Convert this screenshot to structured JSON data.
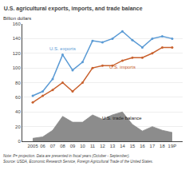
{
  "chart_data": {
    "type": "line",
    "title": "U.S. agricultural exports, imports, and trade balance",
    "ylabel": "Billion dollars",
    "categories": [
      "2005",
      "06",
      "07",
      "08",
      "09",
      "10",
      "11",
      "12",
      "13",
      "14",
      "15",
      "16",
      "17",
      "18",
      "19P"
    ],
    "series": [
      {
        "name": "U.S. trade balance",
        "type": "area",
        "color": "#8c8c8c",
        "values": [
          4,
          6,
          15,
          34,
          26,
          26,
          36,
          30,
          36,
          40,
          23,
          14,
          20,
          15,
          12
        ]
      },
      {
        "name": "U.S. exports",
        "type": "line",
        "color": "#5b9bd5",
        "marker": "circle",
        "values": [
          62,
          68,
          85,
          118,
          97,
          108,
          137,
          135,
          140,
          150,
          138,
          128,
          140,
          143,
          140
        ]
      },
      {
        "name": "U.S. imports",
        "type": "line",
        "color": "#c9622f",
        "marker": "circle",
        "values": [
          53,
          62,
          70,
          80,
          68,
          80,
          100,
          103,
          103,
          110,
          114,
          114,
          120,
          128,
          128
        ]
      }
    ],
    "ylim": [
      0,
      160
    ],
    "yticks": [
      0,
      20,
      40,
      60,
      80,
      100,
      120,
      140,
      160
    ],
    "grid": "y",
    "annotations": [
      "Note: P= projection. Data are presented in fiscal years (October - September).",
      "Source: USDA, Economic Research Service, Foreign Agricultural Trade of the United States."
    ]
  }
}
